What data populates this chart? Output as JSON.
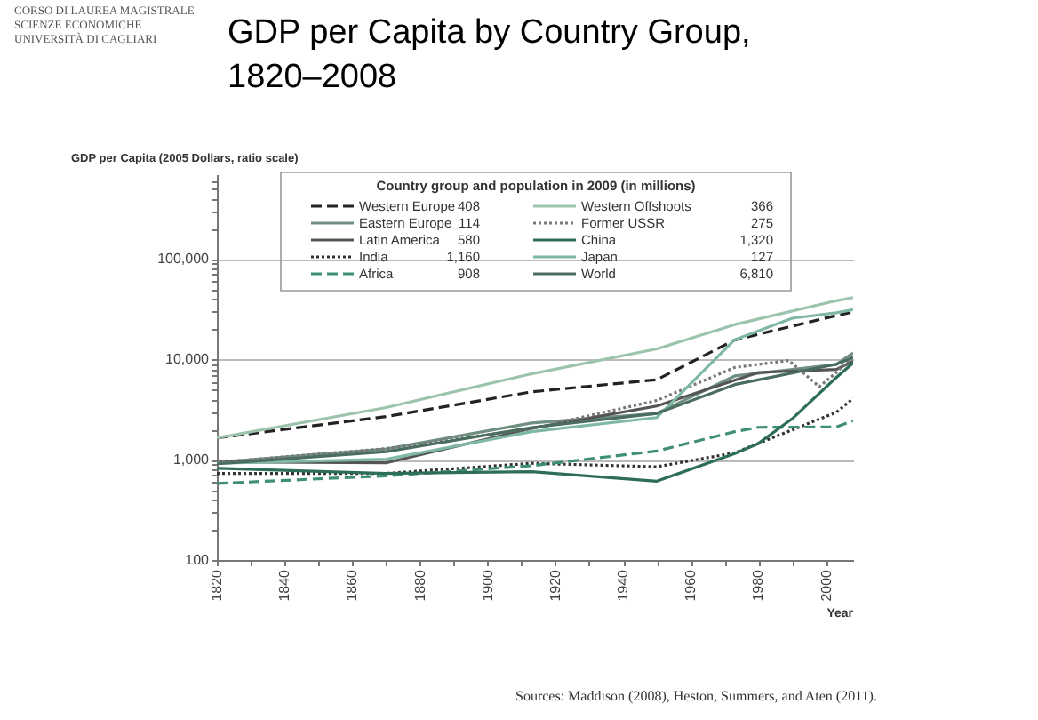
{
  "chart_data": {
    "type": "line",
    "title": "GDP per Capita by Country Group,\n1820–2008",
    "ylabel": "GDP per Capita (2005 Dollars, ratio scale)",
    "xlabel": "Year",
    "legend_title": "Country group and population in 2009 (in millions)",
    "annotations": [
      "CORSO DI LAUREA MAGISTRALE",
      "SCIENZE ECONOMICHE",
      "UNIVERSITÀ DI CAGLIARI",
      "Sources: Maddison (2008), Heston, Summers, and Aten (2011)."
    ],
    "log": true,
    "grid": "y",
    "legend": "top",
    "marker": "none",
    "xlim": [
      1820,
      2008
    ],
    "xticks": [
      1820,
      {
        "value": 1830,
        "label": null
      },
      1840,
      {
        "value": 1850,
        "label": null
      },
      1860,
      {
        "value": 1870,
        "label": null
      },
      1880,
      {
        "value": 1890,
        "label": null
      },
      1900,
      {
        "value": 1910,
        "label": null
      },
      1920,
      {
        "value": 1930,
        "label": null
      },
      1940,
      {
        "value": 1950,
        "label": null
      },
      1960,
      {
        "value": 1970,
        "label": null
      },
      1980,
      {
        "value": 1990,
        "label": null
      },
      2000
    ],
    "ylim": [
      100,
      700000
    ],
    "yticks": [
      {
        "value": 100,
        "label": "100"
      },
      {
        "value": 200,
        "label": null
      },
      {
        "value": 300,
        "label": null
      },
      {
        "value": 400,
        "label": null
      },
      {
        "value": 500,
        "label": null
      },
      {
        "value": 600,
        "label": null
      },
      {
        "value": 700,
        "label": null
      },
      {
        "value": 800,
        "label": null
      },
      {
        "value": 900,
        "label": null
      },
      {
        "value": 1000,
        "label": "1,000"
      },
      {
        "value": 2000,
        "label": null
      },
      {
        "value": 3000,
        "label": null
      },
      {
        "value": 4000,
        "label": null
      },
      {
        "value": 5000,
        "label": null
      },
      {
        "value": 6000,
        "label": null
      },
      {
        "value": 7000,
        "label": null
      },
      {
        "value": 8000,
        "label": null
      },
      {
        "value": 9000,
        "label": null
      },
      {
        "value": 10000,
        "label": "10,000"
      },
      {
        "value": 20000,
        "label": null
      },
      {
        "value": 30000,
        "label": null
      },
      {
        "value": 40000,
        "label": null
      },
      {
        "value": 50000,
        "label": null
      },
      {
        "value": 60000,
        "label": null
      },
      {
        "value": 70000,
        "label": null
      },
      {
        "value": 80000,
        "label": null
      },
      {
        "value": 90000,
        "label": null
      },
      {
        "value": 100000,
        "label": "100,000"
      },
      {
        "value": 200000,
        "label": null
      },
      {
        "value": 300000,
        "label": null
      },
      {
        "value": 400000,
        "label": null
      },
      {
        "value": 500000,
        "label": null
      },
      {
        "value": 600000,
        "label": null
      }
    ],
    "series": [
      {
        "name": "Western Europe 408",
        "color": "#222222",
        "line_style": "dashed",
        "x": [
          1820,
          1870,
          1913,
          1950,
          1973,
          2003,
          2008
        ],
        "values": [
          1650,
          2690,
          4740,
          6270,
          15600,
          27300,
          29700
        ]
      },
      {
        "name": "Eastern Europe 114",
        "color": "#6f8f80",
        "line_style": "solid",
        "x": [
          1820,
          1870,
          1913,
          1950,
          1973,
          2003,
          2008
        ],
        "values": [
          940,
          1280,
          2320,
          2890,
          6830,
          8870,
          11600
        ]
      },
      {
        "name": "Latin America 580",
        "color": "#555555",
        "line_style": "solid",
        "x": [
          1820,
          1870,
          1913,
          1950,
          1973,
          1980,
          2003,
          2008
        ],
        "values": [
          950,
          930,
          2050,
          3430,
          6180,
          7400,
          7930,
          9550
        ]
      },
      {
        "name": "India 1,160",
        "color": "#333333",
        "line_style": "dotted",
        "x": [
          1820,
          1870,
          1913,
          1950,
          1973,
          2003,
          2008
        ],
        "values": [
          730,
          730,
          920,
          850,
          1170,
          2960,
          4080
        ]
      },
      {
        "name": "Africa 908",
        "color": "#3f8f78",
        "line_style": "dashed",
        "x": [
          1820,
          1870,
          1913,
          1950,
          1973,
          1980,
          2003,
          2008
        ],
        "values": [
          580,
          690,
          870,
          1220,
          1900,
          2100,
          2120,
          2440
        ]
      },
      {
        "name": "Western Offshoots 366",
        "color": "#9cc3ad",
        "line_style": "solid",
        "x": [
          1820,
          1870,
          1913,
          1950,
          1973,
          2003,
          2008
        ],
        "values": [
          1650,
          3310,
          7170,
          12700,
          22200,
          38400,
          41300
        ]
      },
      {
        "name": "Former USSR 275",
        "color": "#777777",
        "line_style": "dotted",
        "x": [
          1820,
          1870,
          1913,
          1950,
          1973,
          1989,
          1998,
          2003,
          2008
        ],
        "values": [
          940,
          1290,
          2040,
          3890,
          8300,
          9740,
          5330,
          7390,
          10800
        ]
      },
      {
        "name": "China 1,320",
        "color": "#2e6e58",
        "line_style": "solid",
        "x": [
          1820,
          1870,
          1913,
          1950,
          1973,
          1980,
          1990,
          2003,
          2008
        ],
        "values": [
          820,
          730,
          760,
          610,
          1150,
          1450,
          2560,
          6580,
          9210
        ]
      },
      {
        "name": "Japan 127",
        "color": "#7fb8a4",
        "line_style": "solid",
        "x": [
          1820,
          1870,
          1913,
          1950,
          1973,
          1990,
          2003,
          2008
        ],
        "values": [
          920,
          1010,
          1900,
          2630,
          15700,
          25700,
          29100,
          31300
        ]
      },
      {
        "name": "World 6,810",
        "color": "#4a6d5e",
        "line_style": "solid",
        "x": [
          1820,
          1870,
          1913,
          1950,
          1973,
          2003,
          2008
        ],
        "values": [
          910,
          1200,
          2090,
          2890,
          5600,
          8930,
          10400
        ]
      }
    ]
  }
}
